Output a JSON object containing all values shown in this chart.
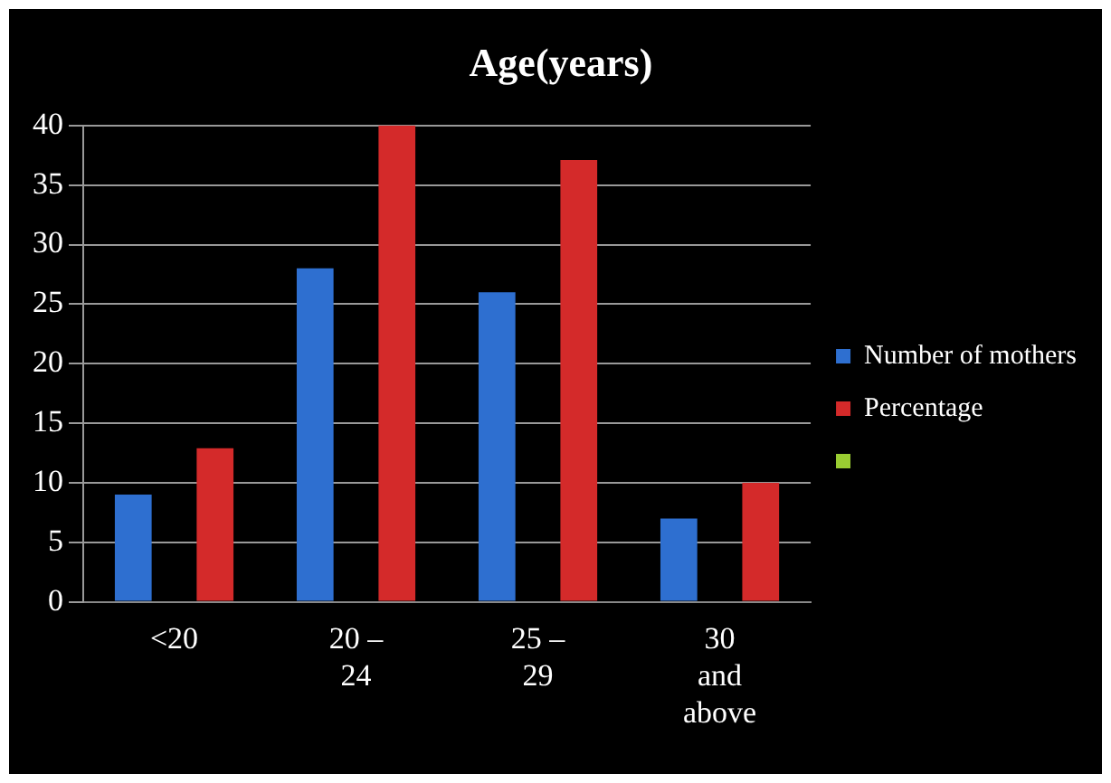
{
  "chart_data": {
    "type": "bar",
    "title": "Age(years)",
    "categories": [
      "<20",
      "20 – 24",
      "25 – 29",
      "30 and above"
    ],
    "series": [
      {
        "name": "Number of mothers",
        "color": "#2e6fd0",
        "values": [
          9,
          28,
          26,
          7
        ]
      },
      {
        "name": "Percentage",
        "color": "#d42a2a",
        "values": [
          12.9,
          40,
          37.1,
          10
        ]
      }
    ],
    "ylim": [
      0,
      40
    ],
    "yticks": [
      0,
      5,
      10,
      15,
      20,
      25,
      30,
      35,
      40
    ],
    "grid": "y",
    "legend": "right"
  }
}
